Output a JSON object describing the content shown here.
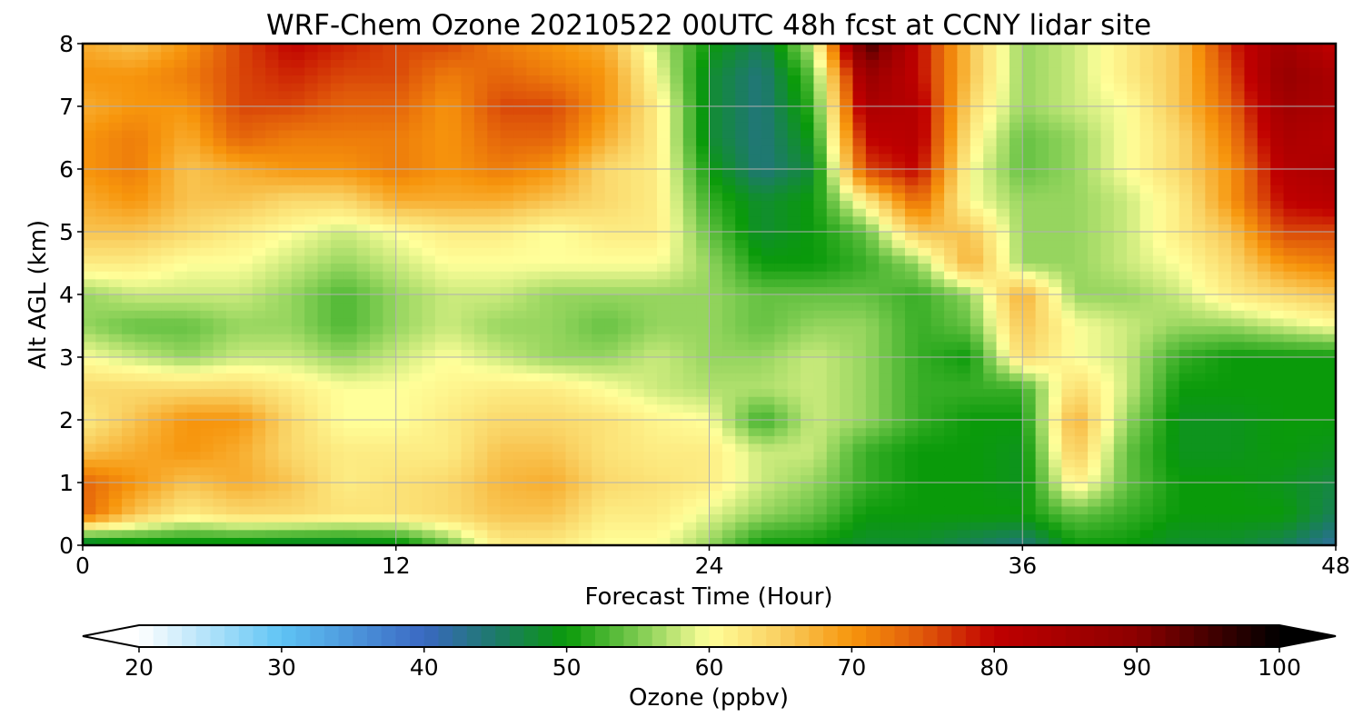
{
  "chart_data": {
    "type": "heatmap",
    "title": "WRF-Chem Ozone  20210522 00UTC 48h fcst at CCNY lidar site",
    "xlabel": "Forecast Time (Hour)",
    "ylabel": "Alt AGL (km)",
    "xlim": [
      0,
      48
    ],
    "ylim": [
      0,
      8
    ],
    "xticks": [
      0,
      12,
      24,
      36,
      48
    ],
    "yticks": [
      0,
      1,
      2,
      3,
      4,
      5,
      6,
      7,
      8
    ],
    "grid": true,
    "x": [
      0,
      2,
      4,
      6,
      8,
      10,
      12,
      14,
      16,
      18,
      20,
      22,
      24,
      26,
      28,
      30,
      32,
      34,
      36,
      38,
      40,
      42,
      44,
      46,
      48
    ],
    "y": [
      0,
      0.5,
      1,
      1.5,
      2,
      2.5,
      3,
      3.5,
      4,
      4.5,
      5,
      5.5,
      6,
      6.5,
      7,
      7.5,
      8
    ],
    "z": [
      [
        45,
        48,
        48,
        48,
        47,
        47,
        48,
        54,
        62,
        62,
        60,
        60,
        56,
        50,
        50,
        48,
        48,
        46,
        44,
        50,
        50,
        48,
        48,
        46,
        42
      ],
      [
        74,
        66,
        62,
        64,
        64,
        63,
        63,
        64,
        66,
        66,
        62,
        62,
        59,
        56,
        54,
        50,
        50,
        50,
        50,
        54,
        52,
        50,
        50,
        50,
        46
      ],
      [
        74,
        70,
        66,
        68,
        66,
        62,
        63,
        64,
        67,
        68,
        64,
        63,
        62,
        58,
        56,
        52,
        50,
        50,
        49,
        62,
        54,
        50,
        50,
        49,
        47
      ],
      [
        66,
        68,
        70,
        68,
        64,
        62,
        62,
        62,
        66,
        66,
        63,
        62,
        62,
        58,
        58,
        52,
        50,
        50,
        49,
        66,
        54,
        49,
        49,
        50,
        49
      ],
      [
        62,
        66,
        70,
        70,
        64,
        60,
        60,
        62,
        64,
        64,
        63,
        61,
        60,
        52,
        58,
        56,
        52,
        50,
        50,
        68,
        56,
        49,
        49,
        50,
        50
      ],
      [
        64,
        64,
        64,
        64,
        62,
        60,
        60,
        61,
        62,
        62,
        60,
        58,
        57,
        57,
        58,
        56,
        52,
        52,
        52,
        64,
        58,
        50,
        50,
        50,
        50
      ],
      [
        60,
        58,
        56,
        58,
        58,
        56,
        58,
        60,
        58,
        56,
        56,
        58,
        56,
        56,
        58,
        56,
        52,
        50,
        64,
        60,
        58,
        52,
        50,
        50,
        50
      ],
      [
        56,
        54,
        54,
        56,
        56,
        53,
        56,
        58,
        56,
        56,
        54,
        56,
        56,
        54,
        56,
        56,
        52,
        54,
        66,
        60,
        58,
        56,
        56,
        58,
        60
      ],
      [
        56,
        58,
        58,
        58,
        56,
        53,
        56,
        58,
        58,
        56,
        56,
        56,
        56,
        54,
        54,
        54,
        52,
        56,
        68,
        56,
        56,
        58,
        62,
        64,
        66
      ],
      [
        62,
        62,
        60,
        60,
        58,
        56,
        58,
        60,
        60,
        60,
        60,
        60,
        56,
        50,
        50,
        52,
        56,
        68,
        56,
        56,
        58,
        60,
        64,
        70,
        72
      ],
      [
        66,
        66,
        64,
        62,
        60,
        58,
        60,
        62,
        62,
        60,
        62,
        62,
        54,
        48,
        50,
        54,
        66,
        66,
        56,
        56,
        58,
        62,
        66,
        76,
        76
      ],
      [
        68,
        70,
        66,
        66,
        64,
        64,
        68,
        68,
        68,
        66,
        64,
        62,
        52,
        48,
        50,
        62,
        74,
        60,
        56,
        56,
        58,
        62,
        70,
        80,
        82
      ],
      [
        70,
        72,
        66,
        68,
        70,
        70,
        72,
        70,
        72,
        70,
        64,
        62,
        50,
        44,
        48,
        76,
        80,
        60,
        54,
        56,
        60,
        64,
        70,
        82,
        84
      ],
      [
        70,
        72,
        68,
        74,
        72,
        72,
        72,
        70,
        74,
        74,
        68,
        62,
        48,
        44,
        50,
        80,
        82,
        62,
        54,
        56,
        60,
        64,
        72,
        84,
        82
      ],
      [
        68,
        70,
        70,
        76,
        76,
        74,
        74,
        70,
        76,
        76,
        70,
        62,
        48,
        44,
        52,
        84,
        82,
        64,
        56,
        58,
        60,
        66,
        74,
        86,
        84
      ],
      [
        70,
        70,
        72,
        76,
        78,
        76,
        76,
        72,
        74,
        72,
        70,
        60,
        48,
        44,
        54,
        88,
        80,
        66,
        56,
        58,
        62,
        66,
        76,
        88,
        84
      ],
      [
        68,
        66,
        70,
        76,
        80,
        78,
        76,
        76,
        72,
        70,
        68,
        58,
        50,
        46,
        58,
        96,
        80,
        66,
        56,
        58,
        62,
        66,
        78,
        86,
        80
      ]
    ],
    "colorbar": {
      "label": "Ozone  (ppbv)",
      "ticks": [
        20,
        30,
        40,
        50,
        60,
        70,
        80,
        90,
        100
      ],
      "min": 20,
      "max": 100,
      "extend": "both",
      "stops": [
        {
          "v": 20,
          "c": "#ffffff"
        },
        {
          "v": 30,
          "c": "#5fc4f4"
        },
        {
          "v": 40,
          "c": "#3a68c2"
        },
        {
          "v": 45,
          "c": "#1d7a6a"
        },
        {
          "v": 50,
          "c": "#0a9a0a"
        },
        {
          "v": 55,
          "c": "#7ccb50"
        },
        {
          "v": 60,
          "c": "#ffff9a"
        },
        {
          "v": 65,
          "c": "#f9cf60"
        },
        {
          "v": 70,
          "c": "#f7950c"
        },
        {
          "v": 75,
          "c": "#e0580a"
        },
        {
          "v": 80,
          "c": "#c00000"
        },
        {
          "v": 90,
          "c": "#8c0000"
        },
        {
          "v": 100,
          "c": "#000000"
        }
      ]
    }
  }
}
